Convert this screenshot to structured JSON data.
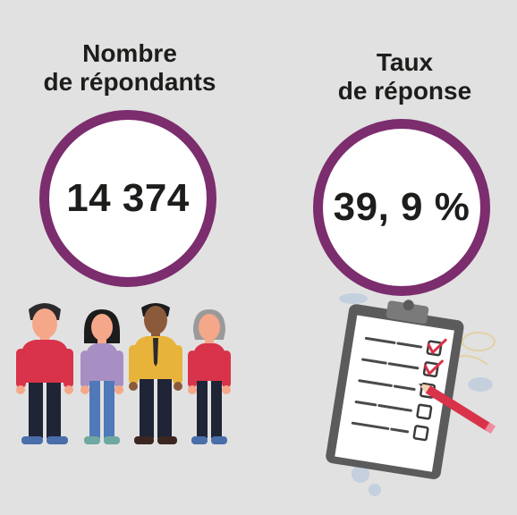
{
  "respondents": {
    "title_line1": "Nombre",
    "title_line2": "de répondants",
    "value": "14 374"
  },
  "response_rate": {
    "title_line1": "Taux",
    "title_line2": "de réponse",
    "value": "39, 9 %"
  },
  "colors": {
    "background": "#e1e1e1",
    "ring": "#7b2d6e",
    "text": "#1d1d1b"
  },
  "icons": [
    "people-illustration",
    "clipboard-checklist-illustration",
    "pencil-icon"
  ]
}
